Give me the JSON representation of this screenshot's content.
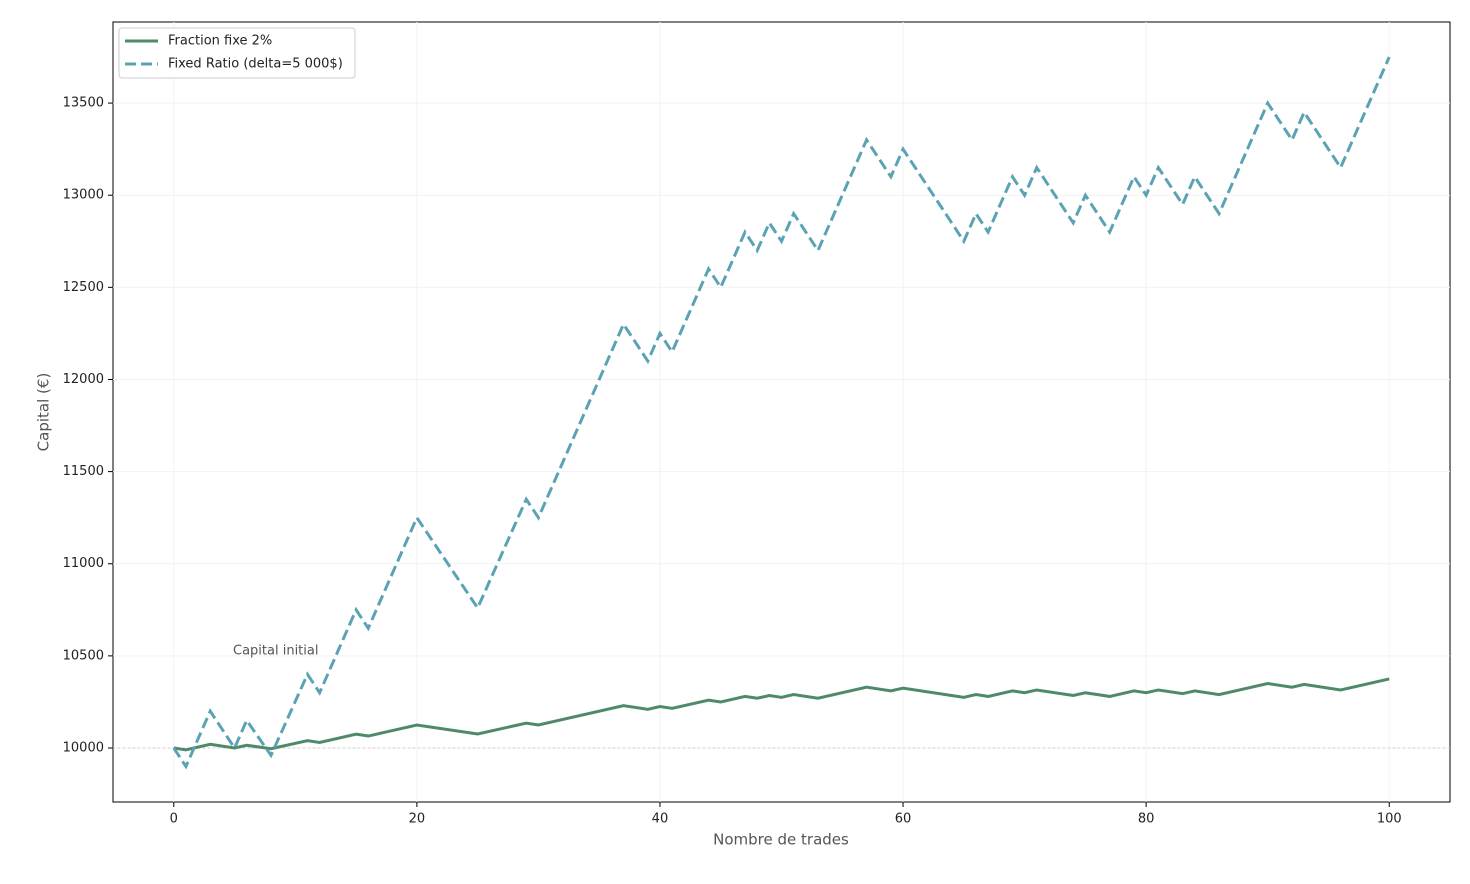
{
  "chart_data": {
    "type": "line",
    "xlabel": "Nombre de trades",
    "ylabel": "Capital (€)",
    "annotation": "Capital initial",
    "hline": 10000,
    "x": [
      0,
      1,
      3,
      5,
      6,
      8,
      11,
      12,
      15,
      16,
      20,
      25,
      29,
      30,
      37,
      39,
      40,
      41,
      44,
      45,
      47,
      48,
      49,
      50,
      51,
      53,
      57,
      59,
      60,
      65,
      66,
      67,
      69,
      70,
      71,
      74,
      75,
      77,
      79,
      80,
      81,
      83,
      84,
      86,
      90,
      92,
      93,
      96,
      100
    ],
    "series": [
      {
        "name": "Fraction fixe 2%",
        "color": "#4e8a6a",
        "dash": "solid",
        "values": [
          10000,
          9990,
          10020,
          10000,
          10015,
          9996,
          10040,
          10030,
          10075,
          10065,
          10125,
          10076,
          10135,
          10125,
          10230,
          10210,
          10225,
          10215,
          10260,
          10250,
          10280,
          10270,
          10285,
          10275,
          10290,
          10270,
          10330,
          10310,
          10325,
          10275,
          10290,
          10280,
          10310,
          10300,
          10315,
          10285,
          10300,
          10280,
          10310,
          10300,
          10315,
          10295,
          10310,
          10290,
          10350,
          10330,
          10345,
          10315,
          10375
        ]
      },
      {
        "name": "Fixed Ratio (delta=5 000$)",
        "color": "#5ba3b4",
        "dash": "dashed",
        "values": [
          10000,
          9900,
          10200,
          10000,
          10150,
          9960,
          10400,
          10300,
          10750,
          10650,
          11250,
          10760,
          11350,
          11250,
          12300,
          12100,
          12250,
          12150,
          12600,
          12500,
          12800,
          12700,
          12850,
          12750,
          12900,
          12700,
          13300,
          13100,
          13250,
          12750,
          12900,
          12800,
          13100,
          13000,
          13150,
          12850,
          13000,
          12800,
          13100,
          13000,
          13150,
          12950,
          13100,
          12900,
          13500,
          13300,
          13450,
          13150,
          13750
        ]
      }
    ],
    "xlim": [
      -5,
      105
    ],
    "ylim": [
      9707,
      13940
    ],
    "xticks": [
      0,
      20,
      40,
      60,
      80,
      100
    ],
    "yticks": [
      10000,
      10500,
      11000,
      11500,
      12000,
      12500,
      13000,
      13500
    ],
    "grid": true,
    "legend": "upper left"
  }
}
